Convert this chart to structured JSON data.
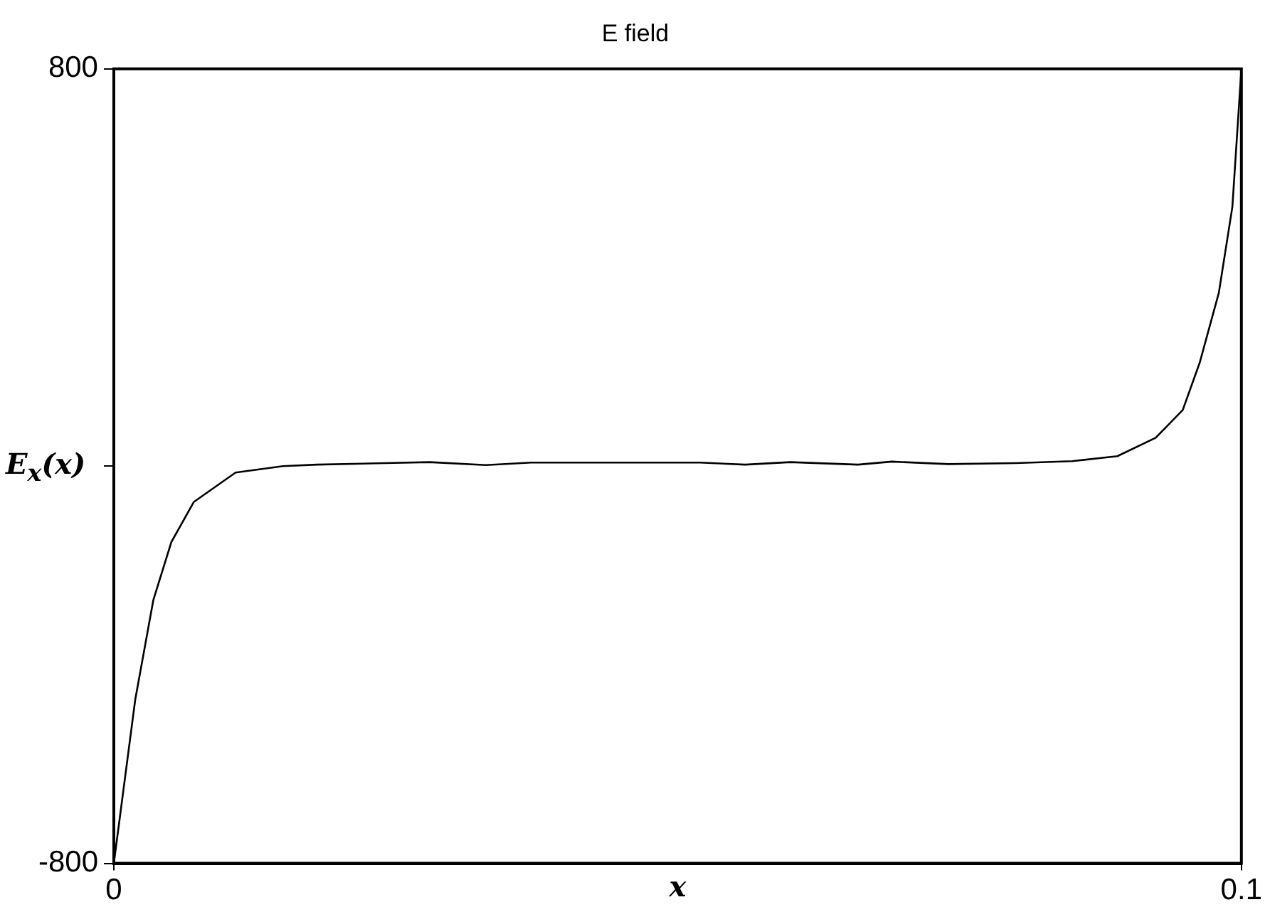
{
  "chart_data": {
    "type": "line",
    "title": "E field",
    "xlabel": "x",
    "ylabel": "E$_{x}$(x)",
    "x": [
      0,
      0.0019,
      0.0035,
      0.0051,
      0.0071,
      0.0108,
      0.015,
      0.018,
      0.024,
      0.028,
      0.033,
      0.037,
      0.045,
      0.052,
      0.056,
      0.06,
      0.066,
      0.069,
      0.074,
      0.08,
      0.085,
      0.089,
      0.0924,
      0.0948,
      0.0963,
      0.098,
      0.0992,
      0.1
    ],
    "series": [
      {
        "color": "#000000",
        "values": [
          -800,
          -470,
          -270,
          -153,
          -72,
          -13,
          0,
          3,
          6,
          8,
          2,
          7,
          7,
          7,
          3,
          8,
          3,
          9,
          4,
          6,
          10,
          20,
          57,
          113,
          208,
          349,
          522,
          800
        ]
      }
    ],
    "xlim": [
      0,
      0.1
    ],
    "ylim": [
      -800,
      800
    ],
    "xticks": [
      0,
      0.1
    ],
    "yticks": [
      -800,
      {
        "value": 0,
        "label": null
      },
      800
    ],
    "grid": false,
    "legend": false,
    "marker": "none",
    "line_style": "solid"
  }
}
